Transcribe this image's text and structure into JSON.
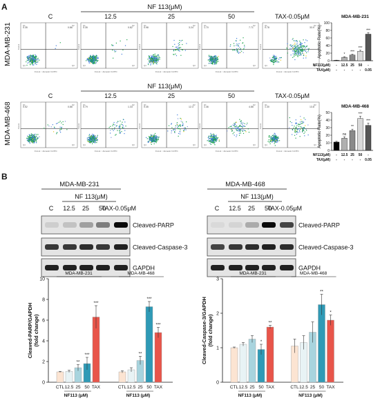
{
  "panelA": {
    "label": "A",
    "treatment_header": "NF 113(μM)",
    "cols": [
      "C",
      "12.5",
      "25",
      "50",
      "TAX-0.05μM"
    ],
    "rows": [
      {
        "cell_line": "MDA-MB-231",
        "quad": [
          [
            "0.35",
            "0.86"
          ],
          [
            "0.35",
            "0.82"
          ],
          [
            "0.98",
            "3.24"
          ],
          [
            "1.70",
            "7.71"
          ],
          [
            "0.78",
            "33.9"
          ]
        ]
      },
      {
        "cell_line": "MDA-MB-468",
        "quad": [
          [
            "0.52",
            "0.86"
          ],
          [
            "0.79",
            "1.33"
          ],
          [
            "0.45",
            "12.3"
          ],
          [
            "1.46",
            "4.86"
          ],
          [
            "1.30",
            "13.8"
          ]
        ]
      }
    ],
    "x_axis_text": "FL1-H :: Annexin V-FITC",
    "y_axis_text": "FL2-H",
    "q_names": [
      "Q1",
      "Q2",
      "Q3",
      "Q4"
    ]
  },
  "chart_data": [
    {
      "type": "bar",
      "title": "MDA-MB-231",
      "ylabel": "Apoptotic Rate(%)",
      "ylim": [
        0,
        100
      ],
      "yticks": [
        0,
        20,
        40,
        60,
        80,
        100
      ],
      "row_labels": [
        "NF113(μM)",
        "TAX(μM)"
      ],
      "nf_row": [
        "-",
        "12.5",
        "25",
        "50",
        "-"
      ],
      "tax_row": [
        "-",
        "-",
        "-",
        "-",
        "0.05"
      ],
      "values": [
        1,
        9,
        15,
        25,
        70
      ],
      "errors": [
        0.5,
        1.5,
        2,
        2.5,
        4
      ],
      "significance": [
        "",
        "*",
        "***",
        "***",
        "***"
      ],
      "colors": [
        "#000000",
        "#b0b0b0",
        "#8a8a8a",
        "#d9d9d9",
        "#555555"
      ]
    },
    {
      "type": "bar",
      "title": "MDA-MB-468",
      "ylabel": "Apoptotic Rate(%)",
      "ylim": [
        0,
        50
      ],
      "yticks": [
        0,
        10,
        20,
        30,
        40,
        50
      ],
      "row_labels": [
        "NF113(μM)",
        "TAX(μM)"
      ],
      "nf_row": [
        "-",
        "12.5",
        "25",
        "50",
        "-"
      ],
      "tax_row": [
        "-",
        "-",
        "-",
        "-",
        "0.05"
      ],
      "values": [
        11,
        16,
        26,
        42,
        33
      ],
      "errors": [
        1,
        2,
        2,
        3,
        3
      ],
      "significance": [
        "",
        "ns",
        "**",
        "***",
        "***"
      ],
      "colors": [
        "#000000",
        "#b0b0b0",
        "#8a8a8a",
        "#d9d9d9",
        "#555555"
      ]
    },
    {
      "type": "bar",
      "ylabel": "Cleaved-PARP/GAPDH\n(fold change)",
      "ylim": [
        0,
        10
      ],
      "yticks": [
        0,
        2,
        4,
        6,
        8,
        10
      ],
      "groups": [
        "MDA-MB-231",
        "MDA-MB-468"
      ],
      "categories": [
        "CTL",
        "12.5",
        "25",
        "50",
        "TAX"
      ],
      "xlabel": "NF113 (μM)",
      "series": [
        {
          "values": [
            1,
            1.05,
            1.4,
            1.8,
            6.3
          ],
          "errors": [
            0.05,
            0.1,
            0.3,
            0.6,
            1.1
          ],
          "significance": [
            "",
            "",
            "**",
            "***",
            "***"
          ]
        },
        {
          "values": [
            1,
            1.2,
            2.1,
            7.3,
            4.8
          ],
          "errors": [
            0.1,
            0.2,
            0.4,
            0.5,
            0.5
          ],
          "significance": [
            "",
            "",
            "**",
            "***",
            "***"
          ]
        }
      ],
      "colors": [
        "#fce4d2",
        "#e8f3f5",
        "#a8d4de",
        "#2f9ab6",
        "#e8554a"
      ]
    },
    {
      "type": "bar",
      "ylabel": "Cleaved-Caspase-3/GAPDH\n(fold change)",
      "ylim": [
        0,
        3
      ],
      "yticks": [
        0,
        1,
        2,
        3
      ],
      "groups": [
        "MDA-MB-231",
        "MDA-MB-468"
      ],
      "categories": [
        "CTL",
        "12.5",
        "25",
        "50",
        "TAX"
      ],
      "xlabel": "NF113 (μM)",
      "series": [
        {
          "values": [
            1,
            1.1,
            1.25,
            0.95,
            1.6
          ],
          "errors": [
            0.02,
            0.05,
            0.1,
            0.15,
            0.05
          ],
          "significance": [
            "",
            "",
            "",
            "*",
            "**"
          ]
        },
        {
          "values": [
            1.05,
            1.15,
            1.45,
            2.25,
            1.8
          ],
          "errors": [
            0.2,
            0.2,
            0.3,
            0.3,
            0.15
          ],
          "significance": [
            "",
            "",
            "",
            "**",
            "*"
          ]
        }
      ],
      "colors": [
        "#fce4d2",
        "#e8f3f5",
        "#a8d4de",
        "#2f9ab6",
        "#e8554a"
      ]
    }
  ],
  "panelB": {
    "label": "B",
    "blots": [
      {
        "cell_line": "MDA-MB-231",
        "header": "NF 113(μM)",
        "lanes": [
          "C",
          "12.5",
          "25",
          "50",
          "TAX-0.05μM"
        ],
        "proteins": [
          "Cleaved-PARP",
          "Cleaved-Caspase-3",
          "GAPDH"
        ]
      },
      {
        "cell_line": "MDA-MB-468",
        "header": "NF 113(μM)",
        "lanes": [
          "C",
          "12.5",
          "25",
          "50",
          "TAX-0.05μM"
        ],
        "proteins": [
          "Cleaved-PARP",
          "Cleaved-Caspase-3",
          "GAPDH"
        ]
      }
    ],
    "band_intensity": [
      [
        [
          0.15,
          0.2,
          0.35,
          0.5,
          1.0
        ],
        [
          0.8,
          0.8,
          0.85,
          0.8,
          0.9
        ],
        [
          0.9,
          0.9,
          0.9,
          0.9,
          0.9
        ]
      ],
      [
        [
          0.1,
          0.12,
          0.3,
          1.0,
          0.75
        ],
        [
          0.75,
          0.8,
          0.85,
          0.9,
          0.85
        ],
        [
          0.9,
          0.9,
          0.9,
          0.9,
          0.9
        ]
      ]
    ]
  }
}
